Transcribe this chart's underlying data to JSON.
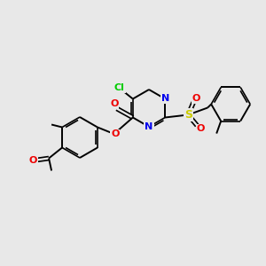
{
  "bg_color": "#e8e8e8",
  "bond_color": "#000000",
  "atom_colors": {
    "Cl": "#00cc00",
    "N": "#0000ee",
    "O": "#ee0000",
    "S": "#cccc00",
    "C": "#000000"
  },
  "figsize": [
    3.0,
    3.0
  ],
  "dpi": 100
}
